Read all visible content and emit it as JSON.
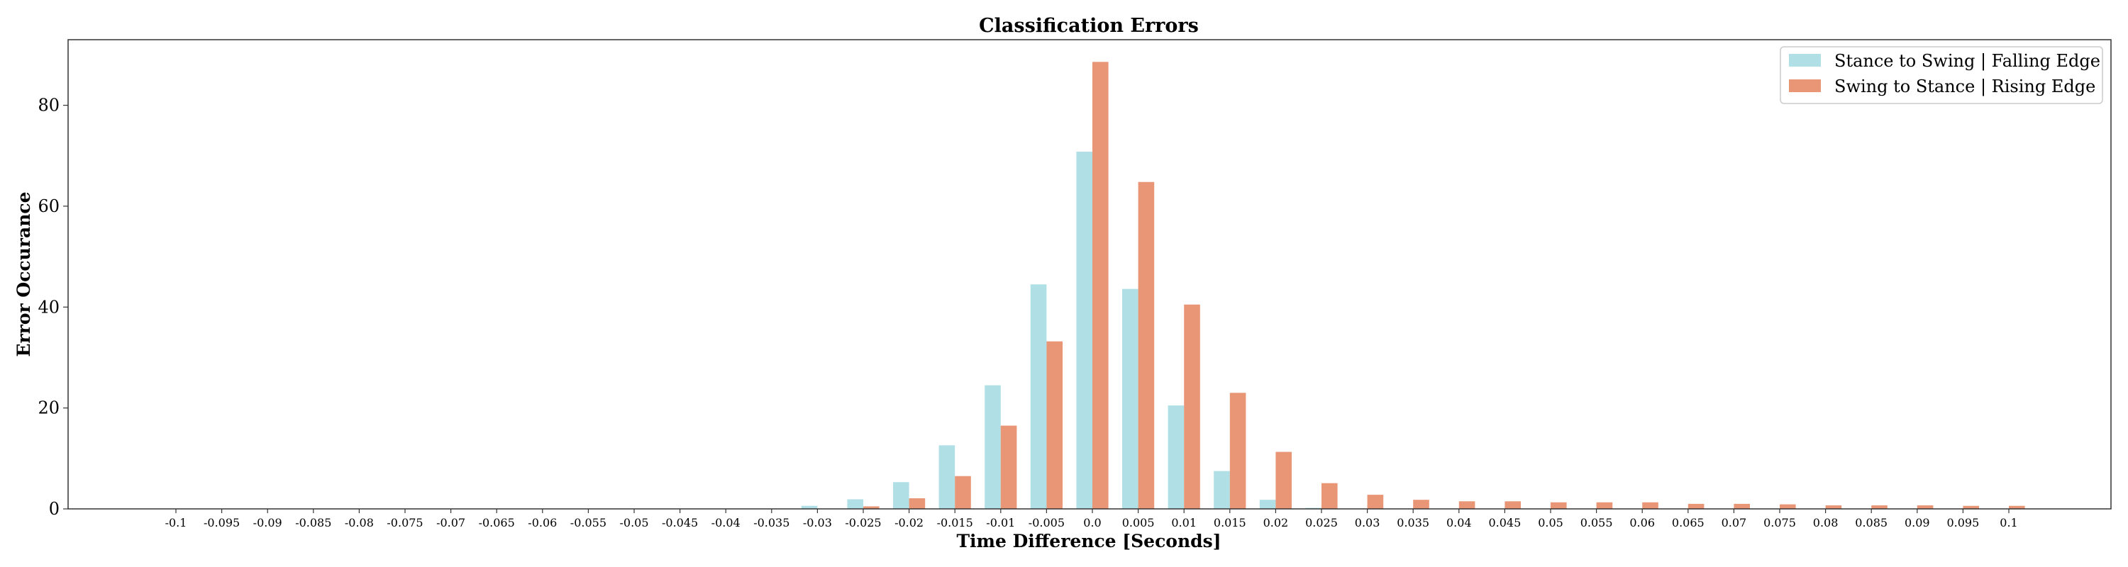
{
  "chart_data": {
    "type": "bar",
    "title": "Classification Errors",
    "xlabel": "Time Difference [Seconds]",
    "ylabel": "Error Occurance",
    "ylim": [
      0,
      93
    ],
    "yticks": [
      0,
      20,
      40,
      60,
      80
    ],
    "grid": false,
    "legend_position": "top-right",
    "categories": [
      "-0.1",
      "-0.095",
      "-0.09",
      "-0.085",
      "-0.08",
      "-0.075",
      "-0.07",
      "-0.065",
      "-0.06",
      "-0.055",
      "-0.05",
      "-0.045",
      "-0.04",
      "-0.035",
      "-0.03",
      "-0.025",
      "-0.02",
      "-0.015",
      "-0.01",
      "-0.005",
      "0.0",
      "0.005",
      "0.01",
      "0.015",
      "0.02",
      "0.025",
      "0.03",
      "0.035",
      "0.04",
      "0.045",
      "0.05",
      "0.055",
      "0.06",
      "0.065",
      "0.07",
      "0.075",
      "0.08",
      "0.085",
      "0.09",
      "0.095",
      "0.1"
    ],
    "series": [
      {
        "name": "Stance to Swing | Falling Edge",
        "color": "#b0dfe5",
        "values": [
          0,
          0,
          0,
          0,
          0,
          0,
          0,
          0,
          0,
          0,
          0,
          0,
          0,
          0,
          0.6,
          1.9,
          5.3,
          12.6,
          24.5,
          44.5,
          70.8,
          43.6,
          20.5,
          7.5,
          1.8,
          0.2,
          0,
          0,
          0,
          0,
          0,
          0,
          0,
          0,
          0,
          0,
          0,
          0,
          0,
          0,
          0
        ]
      },
      {
        "name": "Swing to Stance | Rising Edge",
        "color": "#e99677",
        "values": [
          0,
          0,
          0,
          0,
          0,
          0,
          0,
          0,
          0,
          0,
          0,
          0,
          0,
          0,
          0,
          0.5,
          2.1,
          6.5,
          16.5,
          33.2,
          88.6,
          64.8,
          40.5,
          23.0,
          11.3,
          5.1,
          2.8,
          1.8,
          1.5,
          1.5,
          1.3,
          1.3,
          1.3,
          1.0,
          1.0,
          0.9,
          0.7,
          0.7,
          0.7,
          0.6,
          0.6
        ]
      }
    ]
  }
}
